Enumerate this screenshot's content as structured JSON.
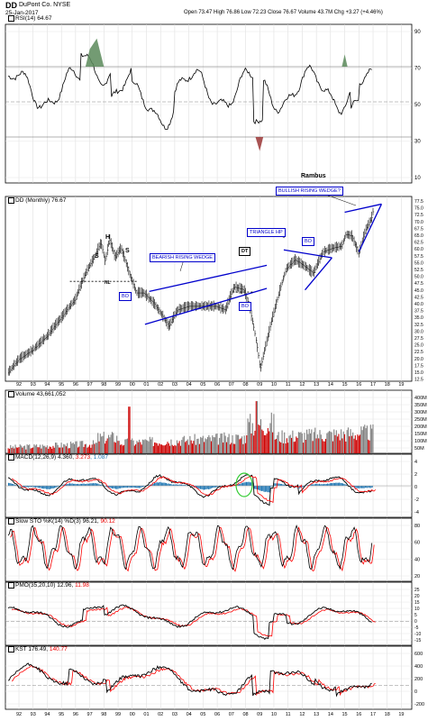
{
  "header": {
    "symbol": "DD",
    "company": "DuPont Co. NYSE",
    "date": "25-Jan-2017",
    "ohlc": "Open 73.47  High 76.86  Low 72.23  Close 76.67  Volume 43.7M  Chg +3.27 (+4.46%)",
    "up_arrow": "▲"
  },
  "colors": {
    "price_line": "#000000",
    "trendline": "#0000cc",
    "annotation_box": "#0000cc",
    "macd_signal": "#ff0000",
    "histogram": "#1f77b4",
    "volume_up": "#808080",
    "volume_down": "#cc0000",
    "rsi_overbought_fill": "#5a8a5a",
    "rsi_oversold_fill": "#a04040",
    "green_circle": "#33cc33"
  },
  "x_axis_ticks": [
    "92",
    "93",
    "94",
    "95",
    "96",
    "97",
    "98",
    "99",
    "00",
    "01",
    "02",
    "03",
    "04",
    "05",
    "06",
    "07",
    "08",
    "09",
    "10",
    "11",
    "12",
    "13",
    "14",
    "15",
    "16",
    "17",
    "18",
    "19"
  ],
  "panels": {
    "rsi": {
      "label": "RSI(14) 64.67",
      "ticks": [
        "90",
        "70",
        "50",
        "30",
        "10"
      ]
    },
    "price": {
      "label": "DD (Monthly) 76.67",
      "ticks": [
        "77.5",
        "75.0",
        "72.5",
        "70.0",
        "67.5",
        "65.0",
        "62.5",
        "60.0",
        "57.5",
        "55.0",
        "52.5",
        "50.0",
        "47.5",
        "45.0",
        "42.5",
        "40.0",
        "37.5",
        "35.0",
        "32.5",
        "30.0",
        "27.5",
        "25.0",
        "22.5",
        "20.0",
        "17.5",
        "15.0",
        "12.5"
      ],
      "annotations": {
        "author": "Rambus",
        "bullish_wedge": "BULLISH RISING WEDGE?",
        "bearish_wedge": "BEARISH RISING WEDGE",
        "triangle_hp": "TRIANGLE HP",
        "bo_left": "BO",
        "bo_mid": "BO",
        "bo_right": "BO",
        "dt": "DT",
        "nl": "NL",
        "h": "H",
        "s_left": "S",
        "s_right": "S"
      }
    },
    "volume": {
      "label": "Volume 43,661,052",
      "ticks": [
        "400M",
        "350M",
        "300M",
        "250M",
        "200M",
        "150M",
        "100M",
        "50M"
      ]
    },
    "macd": {
      "label_prefix": "MACD(12,26,9) 4.360, ",
      "label_signal": "3.273",
      "label_hist": ", 1.087",
      "ticks": [
        "4",
        "2",
        "0",
        "-2",
        "-4"
      ]
    },
    "sto": {
      "label_prefix": "Slow STO %K(14) %D(3) 96.21, ",
      "label_red": "90.12",
      "ticks": [
        "80",
        "60",
        "40",
        "20"
      ]
    },
    "pmo": {
      "label_prefix": "PMO(35,20,10) 12.96, ",
      "label_red": "11.98",
      "ticks": [
        "25",
        "20",
        "15",
        "10",
        "5",
        "0",
        "-5",
        "-10",
        "-15"
      ]
    },
    "kst": {
      "label_prefix": "KST 176.49, ",
      "label_red": "140.77",
      "ticks": [
        "600",
        "400",
        "200",
        "0",
        "-200"
      ]
    }
  }
}
